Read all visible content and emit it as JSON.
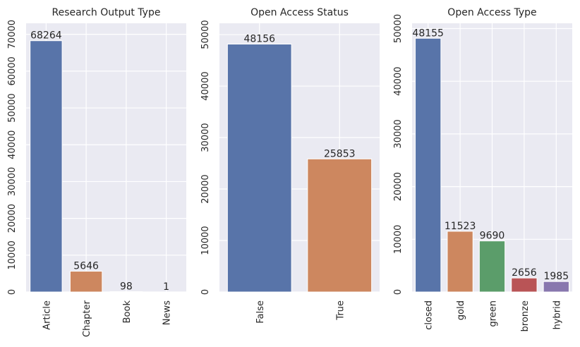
{
  "chart_data": [
    {
      "type": "bar",
      "title": "Research Output Type",
      "categories": [
        "Article",
        "Chapter",
        "Book",
        "News"
      ],
      "values": [
        68264,
        5646,
        98,
        1
      ],
      "ylim": [
        0,
        73000
      ],
      "yticks": [
        0,
        10000,
        20000,
        30000,
        40000,
        50000,
        60000,
        70000
      ],
      "colors": [
        "#5874a9",
        "#cd875f",
        "#5874a9",
        "#5874a9"
      ],
      "grid": true
    },
    {
      "type": "bar",
      "title": "Open Access Status",
      "categories": [
        "False",
        "True"
      ],
      "values": [
        48156,
        25853
      ],
      "ylim": [
        0,
        52200
      ],
      "yticks": [
        0,
        10000,
        20000,
        30000,
        40000,
        50000
      ],
      "colors": [
        "#5874a9",
        "#cd875f"
      ],
      "grid": true
    },
    {
      "type": "bar",
      "title": "Open Access Type",
      "categories": [
        "closed",
        "gold",
        "green",
        "bronze",
        "hybrid"
      ],
      "values": [
        48155,
        11523,
        9690,
        2656,
        1985
      ],
      "ylim": [
        0,
        51000
      ],
      "yticks": [
        0,
        10000,
        20000,
        30000,
        40000,
        50000
      ],
      "colors": [
        "#5874a9",
        "#cd875f",
        "#5b9d6a",
        "#b95456",
        "#8877ae"
      ],
      "grid": true
    }
  ]
}
